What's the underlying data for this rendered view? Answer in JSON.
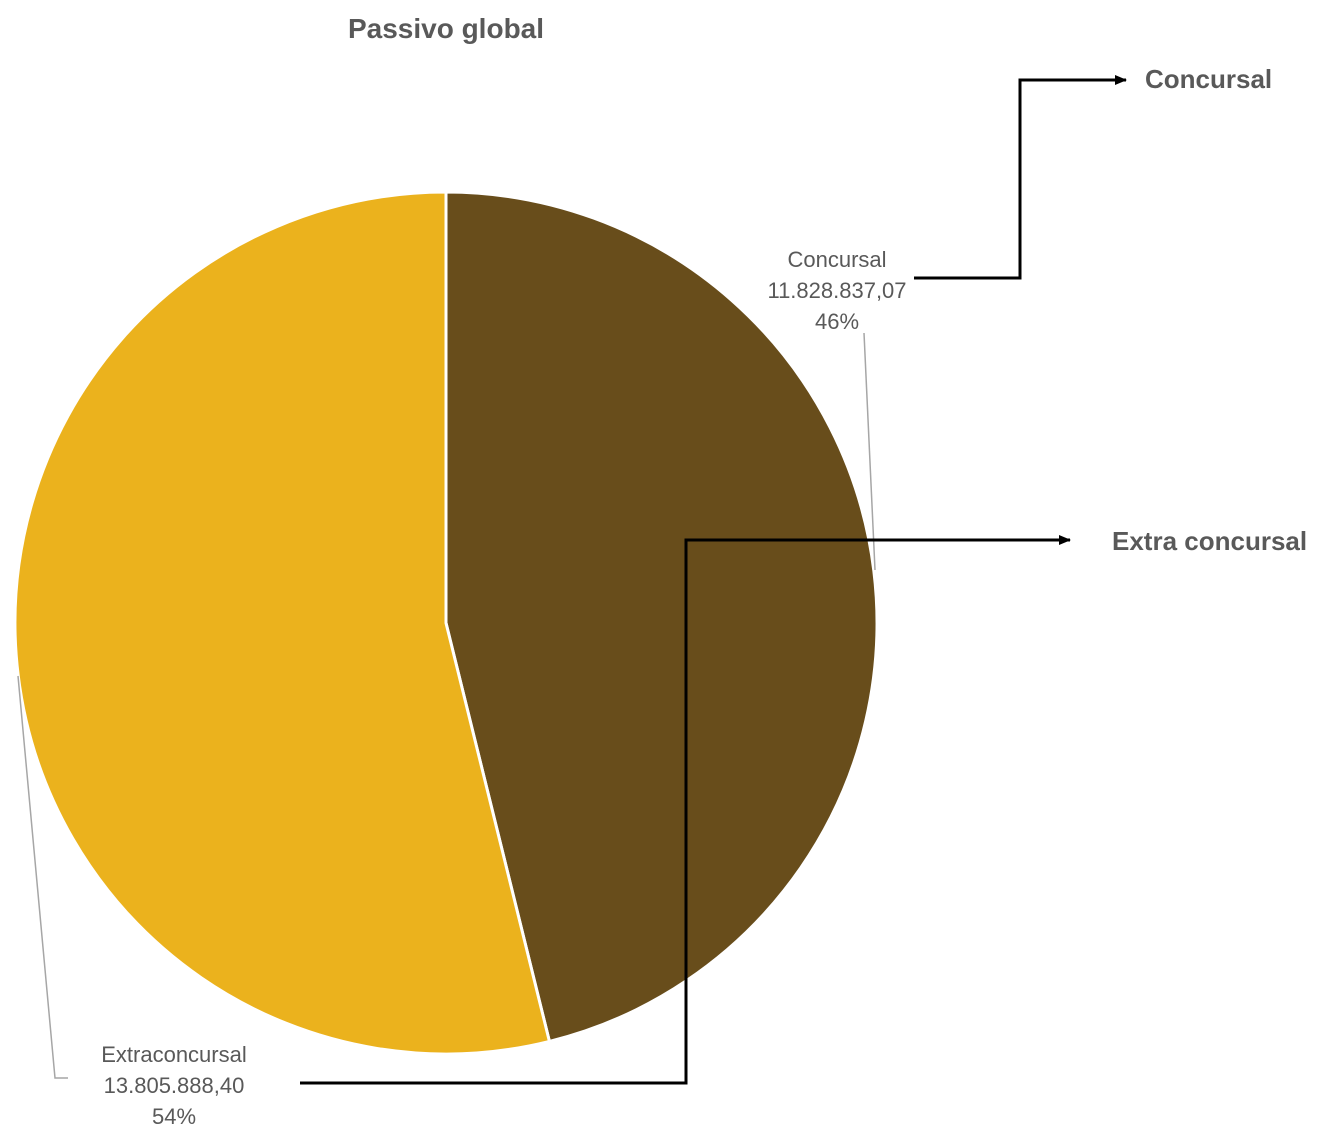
{
  "chart_data": {
    "type": "pie",
    "title": "Passivo global",
    "slices": [
      {
        "label": "Concursal",
        "value": 11828837.07,
        "value_label": "11.828.837,07",
        "percent_label": "46%",
        "color": "#684D1B"
      },
      {
        "label": "Extraconcursal",
        "value": 13805888.4,
        "value_label": "13.805.888,40",
        "percent_label": "54%",
        "color": "#EBB21D"
      }
    ],
    "start_angle": "12 o'clock, clockwise",
    "legend": "none"
  },
  "annotations": [
    {
      "text": "Concursal"
    },
    {
      "text": "Extra concursal"
    }
  ]
}
